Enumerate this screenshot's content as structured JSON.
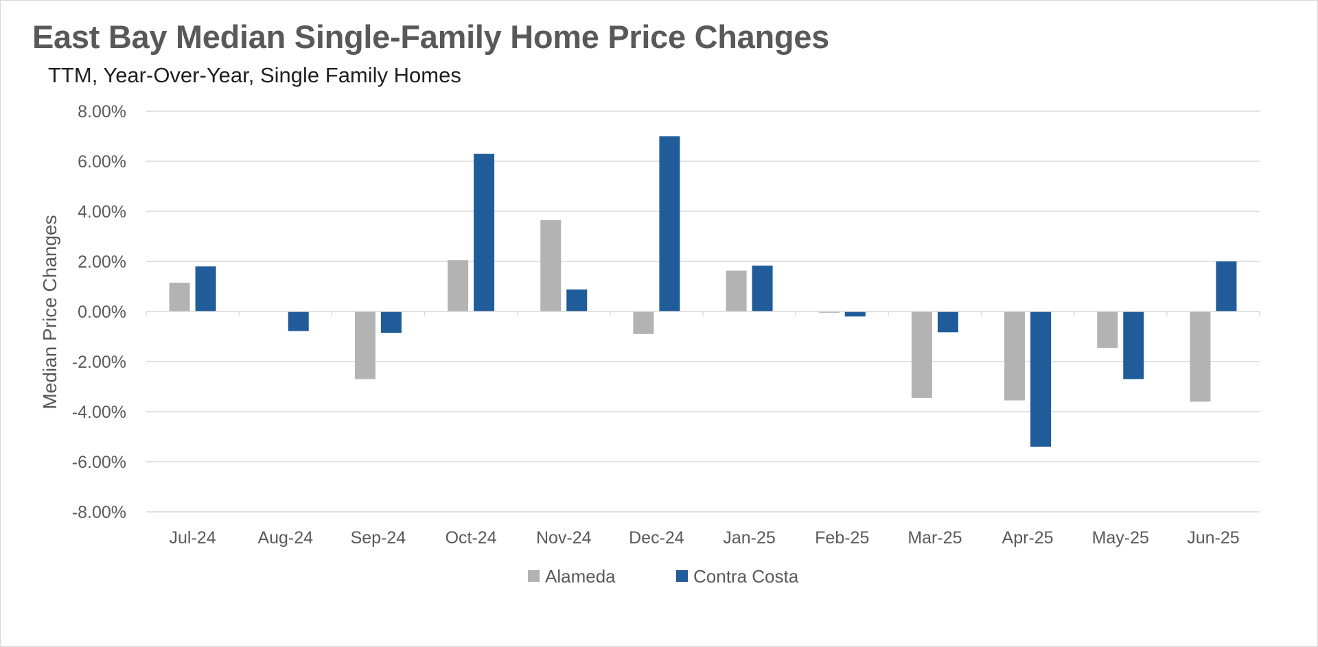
{
  "chart_data": {
    "type": "bar",
    "title": "East Bay Median Single-Family Home Price Changes",
    "subtitle": "TTM, Year-Over-Year, Single Family Homes",
    "xlabel": "",
    "ylabel": "Median Price Changes",
    "ylim": [
      -0.08,
      0.08
    ],
    "yticks": [
      0.08,
      0.06,
      0.04,
      0.02,
      0,
      -0.02,
      -0.04,
      -0.06,
      -0.08
    ],
    "ytick_labels": [
      "8.00%",
      "6.00%",
      "4.00%",
      "2.00%",
      "0.00%",
      "-2.00%",
      "-4.00%",
      "-6.00%",
      "-8.00%"
    ],
    "grid": true,
    "legend_position": "bottom",
    "categories": [
      "Jul-24",
      "Aug-24",
      "Sep-24",
      "Oct-24",
      "Nov-24",
      "Dec-24",
      "Jan-25",
      "Feb-25",
      "Mar-25",
      "Apr-25",
      "May-25",
      "Jun-25"
    ],
    "series": [
      {
        "name": "Alameda",
        "color": "#b3b3b3",
        "values": [
          0.0115,
          0.0,
          -0.027,
          0.0205,
          0.0365,
          -0.009,
          0.0163,
          -0.0005,
          -0.0345,
          -0.0355,
          -0.0145,
          -0.036
        ]
      },
      {
        "name": "Contra Costa",
        "color": "#1f5c99",
        "values": [
          0.018,
          -0.0078,
          -0.0085,
          0.063,
          0.0088,
          0.07,
          0.0183,
          -0.002,
          -0.0083,
          -0.054,
          -0.027,
          0.02
        ]
      }
    ]
  }
}
